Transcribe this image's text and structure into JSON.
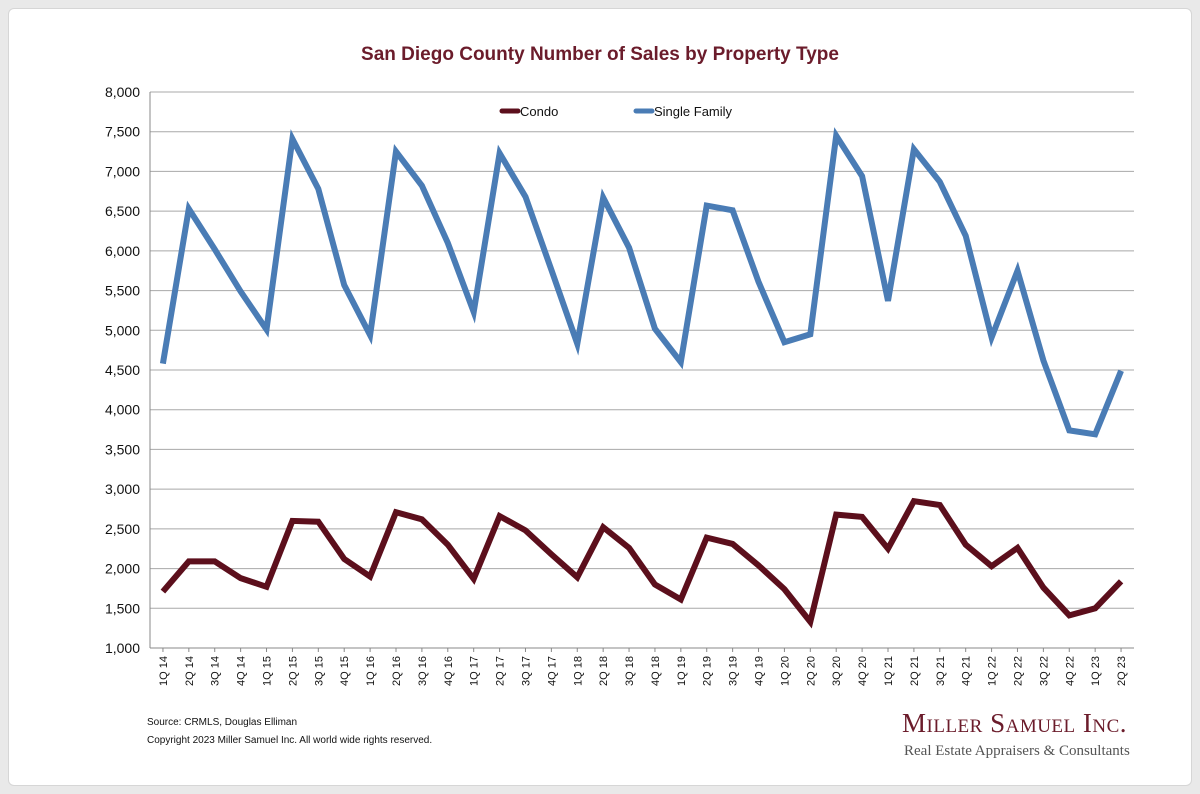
{
  "chart_data": {
    "type": "line",
    "title": "San Diego County Number of Sales by Property Type",
    "categories": [
      "1Q 14",
      "2Q 14",
      "3Q 14",
      "4Q 14",
      "1Q 15",
      "2Q 15",
      "3Q 15",
      "4Q 15",
      "1Q 16",
      "2Q 16",
      "3Q 16",
      "4Q 16",
      "1Q 17",
      "2Q 17",
      "3Q 17",
      "4Q 17",
      "1Q 18",
      "2Q 18",
      "3Q 18",
      "4Q 18",
      "1Q 19",
      "2Q 19",
      "3Q 19",
      "4Q 19",
      "1Q 20",
      "2Q 20",
      "3Q 20",
      "4Q 20",
      "1Q 21",
      "2Q 21",
      "3Q 21",
      "4Q 21",
      "1Q 22",
      "2Q 22",
      "3Q 22",
      "4Q 22",
      "1Q 23",
      "2Q 23"
    ],
    "series": [
      {
        "name": "Condo",
        "color": "#5c0f1c",
        "values": [
          1710,
          2090,
          2090,
          1880,
          1770,
          2600,
          2590,
          2120,
          1900,
          2710,
          2620,
          2300,
          1870,
          2660,
          2480,
          2180,
          1890,
          2520,
          2260,
          1800,
          1610,
          2390,
          2310,
          2040,
          1740,
          1330,
          2680,
          2650,
          2250,
          2850,
          2800,
          2300,
          2030,
          2260,
          1760,
          1410,
          1500,
          1840
        ]
      },
      {
        "name": "Single Family",
        "color": "#4a7cb5",
        "values": [
          4580,
          6530,
          6020,
          5490,
          5010,
          7410,
          6780,
          5570,
          4940,
          7250,
          6820,
          6100,
          5230,
          7230,
          6680,
          5760,
          4830,
          6670,
          6040,
          5020,
          4600,
          6570,
          6510,
          5610,
          4850,
          4950,
          7450,
          6940,
          5370,
          7280,
          6870,
          6190,
          4910,
          5750,
          4620,
          3740,
          3690,
          4490
        ]
      }
    ],
    "ylim": [
      1000,
      8000
    ],
    "yticks": [
      "1,000",
      "1,500",
      "2,000",
      "2,500",
      "3,000",
      "3,500",
      "4,000",
      "4,500",
      "5,000",
      "5,500",
      "6,000",
      "6,500",
      "7,000",
      "7,500",
      "8,000"
    ],
    "grid": true,
    "legend": "top-center"
  },
  "footer": {
    "source": "Source: CRMLS, Douglas Elliman",
    "copyright": "Copyright 2023 Miller Samuel Inc.  All world wide rights reserved."
  },
  "logo": {
    "name": "Miller Samuel Inc.",
    "tagline": "Real Estate Appraisers & Consultants"
  }
}
